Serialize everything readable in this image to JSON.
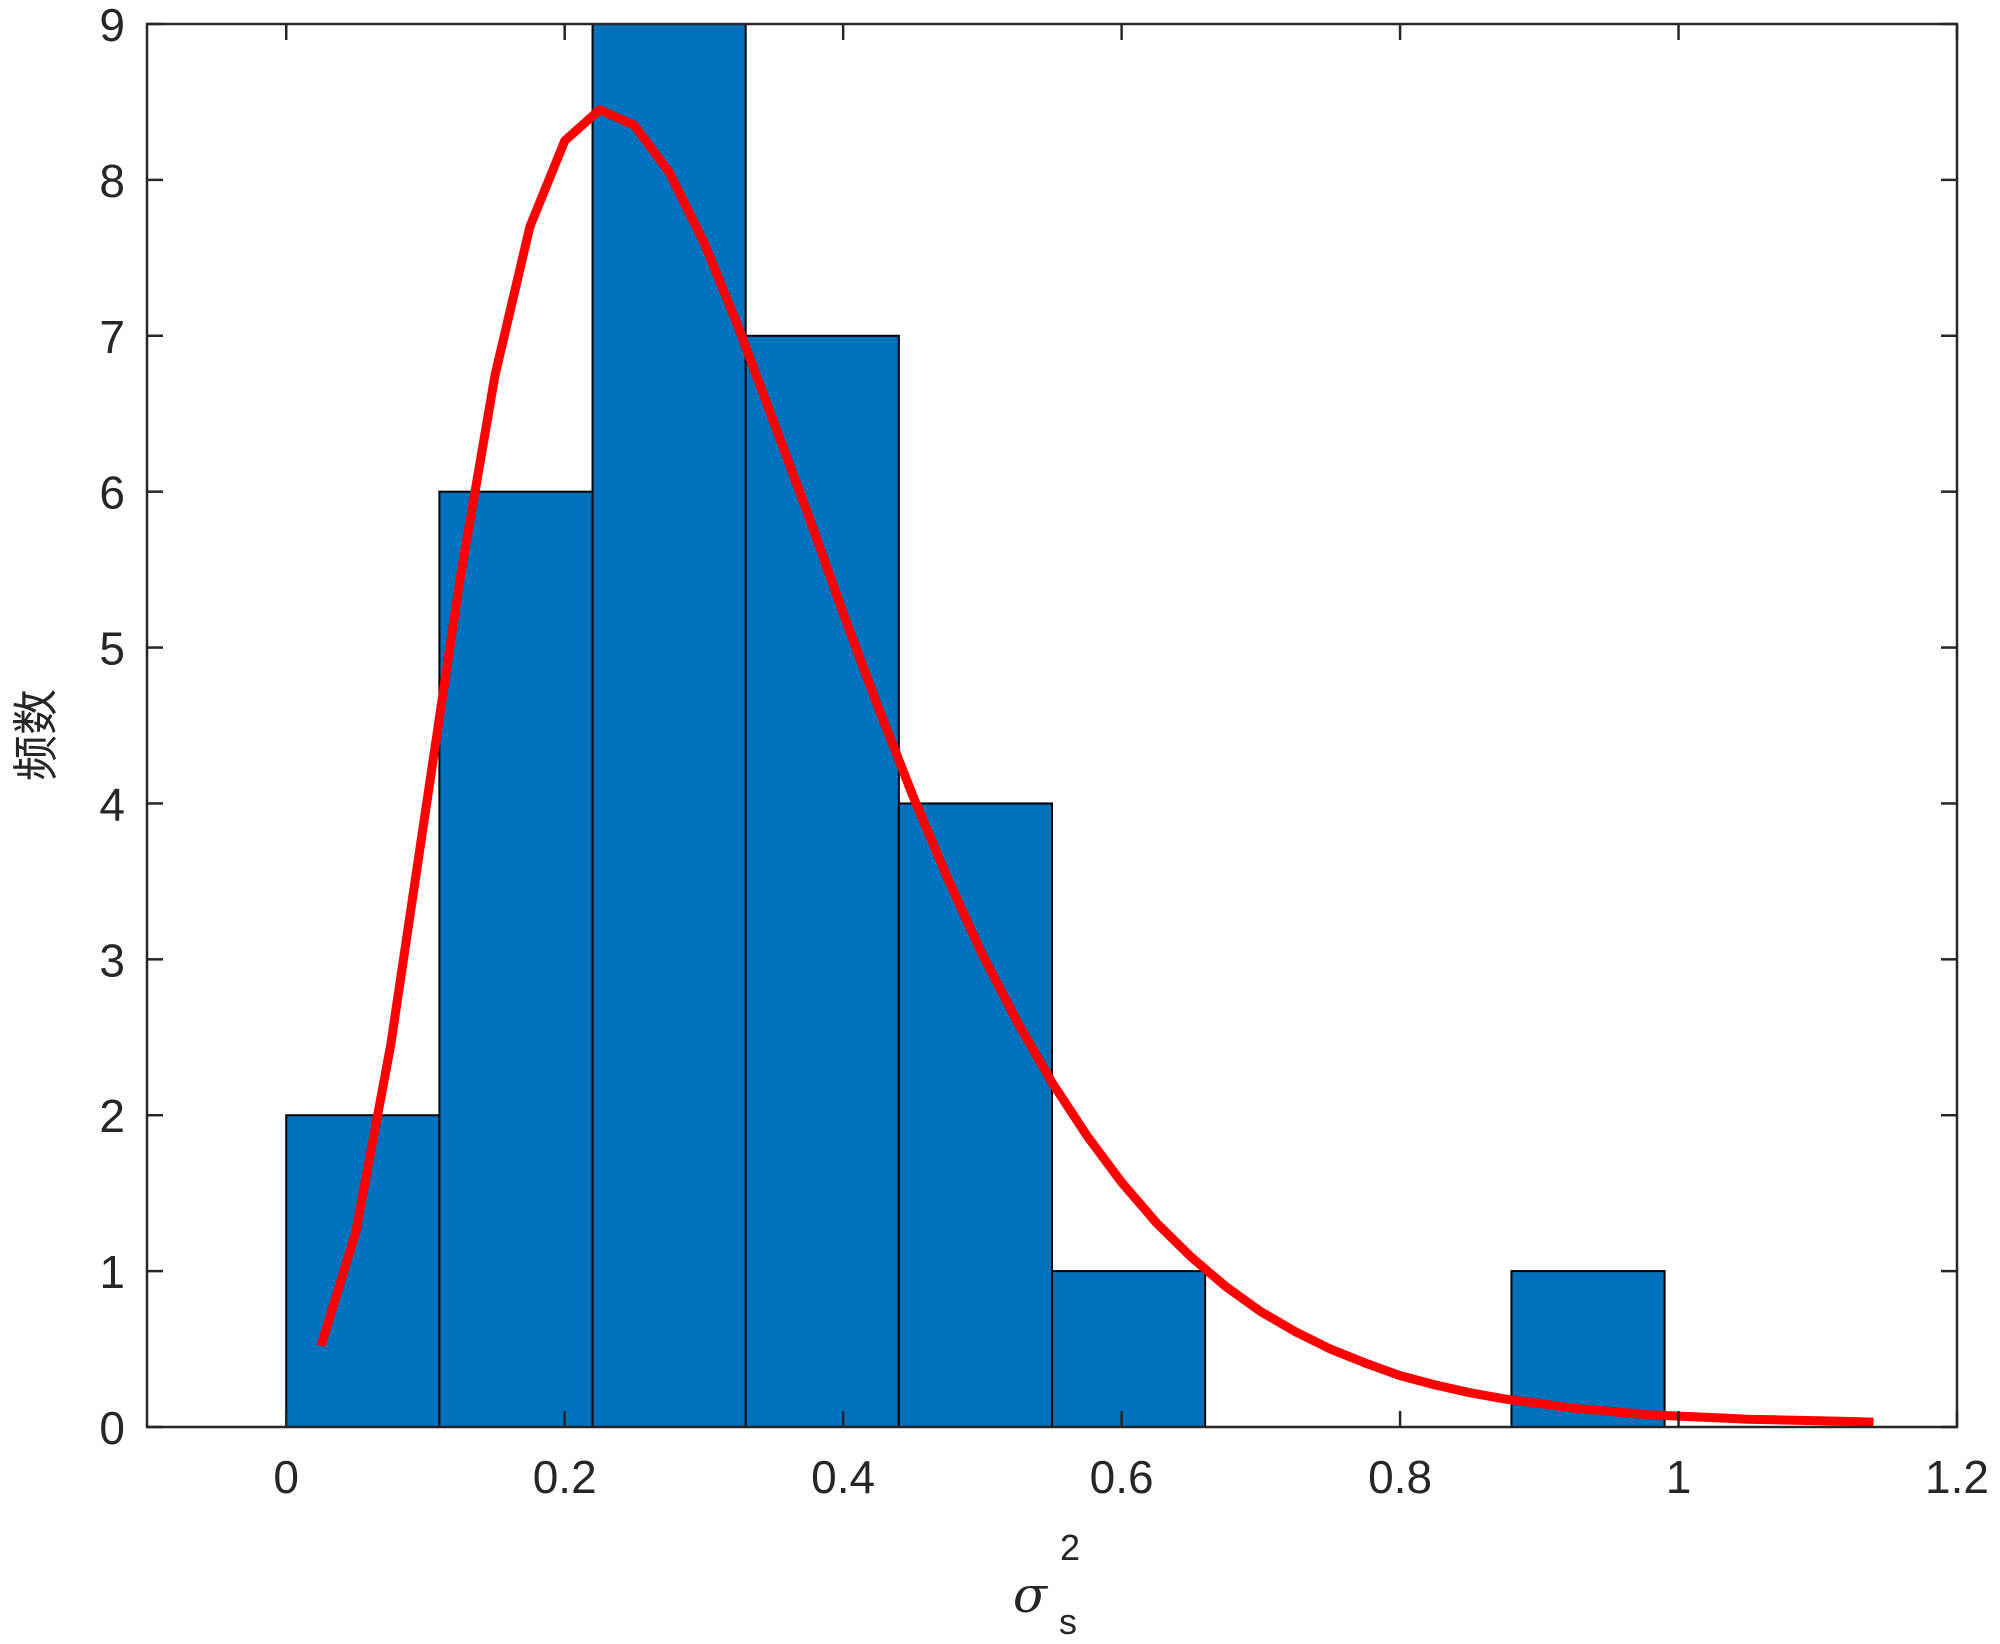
{
  "chart_data": {
    "type": "bar",
    "subtype": "histogram",
    "bins": [
      {
        "x0": 0.0,
        "x1": 0.11,
        "count": 2
      },
      {
        "x0": 0.11,
        "x1": 0.22,
        "count": 6
      },
      {
        "x0": 0.22,
        "x1": 0.33,
        "count": 9
      },
      {
        "x0": 0.33,
        "x1": 0.44,
        "count": 7
      },
      {
        "x0": 0.44,
        "x1": 0.55,
        "count": 4
      },
      {
        "x0": 0.55,
        "x1": 0.66,
        "count": 1
      },
      {
        "x0": 0.66,
        "x1": 0.77,
        "count": 0
      },
      {
        "x0": 0.77,
        "x1": 0.88,
        "count": 0
      },
      {
        "x0": 0.88,
        "x1": 0.99,
        "count": 1
      }
    ],
    "fit_curve": {
      "x": [
        0.025,
        0.05,
        0.075,
        0.1,
        0.125,
        0.15,
        0.175,
        0.2,
        0.225,
        0.25,
        0.275,
        0.3,
        0.325,
        0.35,
        0.375,
        0.4,
        0.425,
        0.45,
        0.475,
        0.5,
        0.525,
        0.55,
        0.575,
        0.6,
        0.625,
        0.65,
        0.675,
        0.7,
        0.725,
        0.75,
        0.775,
        0.8,
        0.825,
        0.85,
        0.875,
        0.9,
        0.925,
        0.95,
        0.975,
        1.0,
        1.025,
        1.05,
        1.075,
        1.1,
        1.125,
        1.14
      ],
      "y": [
        0.52,
        1.25,
        2.45,
        3.95,
        5.45,
        6.75,
        7.7,
        8.25,
        8.45,
        8.35,
        8.05,
        7.6,
        7.05,
        6.45,
        5.85,
        5.22,
        4.62,
        4.05,
        3.52,
        3.03,
        2.6,
        2.21,
        1.87,
        1.57,
        1.31,
        1.09,
        0.9,
        0.74,
        0.61,
        0.5,
        0.41,
        0.33,
        0.27,
        0.22,
        0.18,
        0.15,
        0.12,
        0.1,
        0.08,
        0.07,
        0.06,
        0.05,
        0.045,
        0.04,
        0.035,
        0.03
      ]
    },
    "xlim": [
      -0.1,
      1.2
    ],
    "ylim": [
      0,
      9
    ],
    "xticks": [
      0,
      0.2,
      0.4,
      0.6,
      0.8,
      1,
      1.2
    ],
    "yticks": [
      0,
      1,
      2,
      3,
      4,
      5,
      6,
      7,
      8,
      9
    ],
    "xtick_labels": [
      "0",
      "0.2",
      "0.4",
      "0.6",
      "0.8",
      "1",
      "1.2"
    ],
    "ytick_labels": [
      "0",
      "1",
      "2",
      "3",
      "4",
      "5",
      "6",
      "7",
      "8",
      "9"
    ],
    "xlabel": {
      "main": "σ",
      "superscript": "2",
      "subscript": "s"
    },
    "ylabel": "频数",
    "title": "",
    "grid": false,
    "colors": {
      "bars": "#0072BD",
      "bar_edge": "#000000",
      "curve": "#FF0000",
      "axes": "#262626"
    }
  }
}
